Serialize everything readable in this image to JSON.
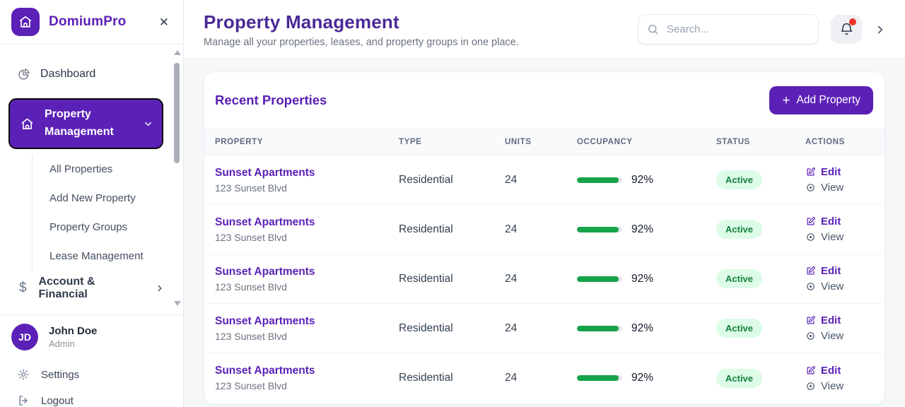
{
  "brand": {
    "name": "DomiumPro"
  },
  "icons": {
    "close": "✕",
    "dollar": "$",
    "plus": "+"
  },
  "sidebar": {
    "dashboard": "Dashboard",
    "property_management": "Property Management",
    "property_children": [
      "All Properties",
      "Add New Property",
      "Property Groups",
      "Lease Management"
    ],
    "account_financial": "Account & Financial",
    "user": {
      "initials": "JD",
      "name": "John Doe",
      "role": "Admin"
    },
    "settings": "Settings",
    "logout": "Logout"
  },
  "header": {
    "title": "Property Management",
    "subtitle": "Manage all your properties, leases, and property groups in one place.",
    "search_placeholder": "Search..."
  },
  "card": {
    "title": "Recent Properties",
    "add_button": "Add Property",
    "columns": [
      "PROPERTY",
      "TYPE",
      "UNITS",
      "OCCUPANCY",
      "STATUS",
      "ACTIONS"
    ],
    "edit_label": "Edit",
    "view_label": "View",
    "rows": [
      {
        "name": "Sunset Apartments",
        "address": "123 Sunset Blvd",
        "type": "Residential",
        "units": "24",
        "occupancy": 92,
        "occupancy_label": "92%",
        "status": "Active"
      },
      {
        "name": "Sunset Apartments",
        "address": "123 Sunset Blvd",
        "type": "Residential",
        "units": "24",
        "occupancy": 92,
        "occupancy_label": "92%",
        "status": "Active"
      },
      {
        "name": "Sunset Apartments",
        "address": "123 Sunset Blvd",
        "type": "Residential",
        "units": "24",
        "occupancy": 92,
        "occupancy_label": "92%",
        "status": "Active"
      },
      {
        "name": "Sunset Apartments",
        "address": "123 Sunset Blvd",
        "type": "Residential",
        "units": "24",
        "occupancy": 92,
        "occupancy_label": "92%",
        "status": "Active"
      },
      {
        "name": "Sunset Apartments",
        "address": "123 Sunset Blvd",
        "type": "Residential",
        "units": "24",
        "occupancy": 92,
        "occupancy_label": "92%",
        "status": "Active"
      }
    ]
  },
  "colors": {
    "accent_purple": "#5b21b6",
    "title_purple": "#4b2a97",
    "progress_green": "#16a34a",
    "badge_bg": "#dcfce7",
    "badge_text": "#15803d",
    "notification_red": "#ee3626"
  }
}
